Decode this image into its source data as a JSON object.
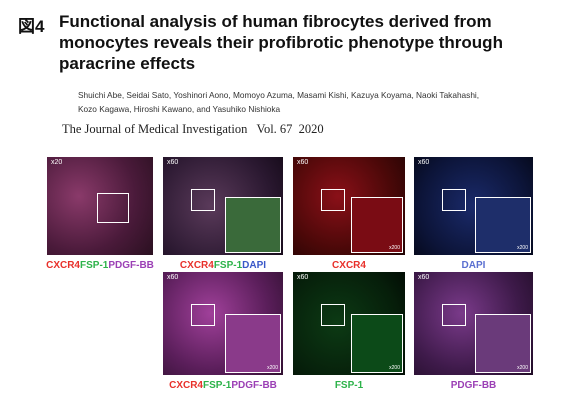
{
  "figure": {
    "label": "図4",
    "title_lines": [
      "Functional analysis of human fibrocytes derived from",
      "monocytes reveals their profibrotic phenotype through",
      "paracrine effects"
    ]
  },
  "authors": [
    "Shuichi Abe, Seidai Sato, Yoshinori Aono, Momoyo Azuma, Masami Kishi, Kazuya Koyama, Naoki Takahashi,",
    "Kozo Kagawa, Hiroshi Kawano, and Yasuhiko Nishioka"
  ],
  "journal": {
    "name": "The Journal of Medical Investigation",
    "volume": "Vol. 67",
    "year": "2020"
  },
  "panels": [
    {
      "magnification": "x20",
      "caption": [
        {
          "text": "CXCR4",
          "color": "#e8302a"
        },
        {
          "text": "FSP-1",
          "color": "#2db34a"
        },
        {
          "text": "PDGF-BB",
          "color": "#9b3fb5"
        }
      ]
    },
    {
      "magnification": "x60",
      "caption": [
        {
          "text": "CXCR4",
          "color": "#e8302a"
        },
        {
          "text": "FSP-1",
          "color": "#2db34a"
        },
        {
          "text": "DAPI",
          "color": "#3a58c8"
        }
      ]
    },
    {
      "magnification": "x60",
      "inset_magnification": "x200",
      "caption": [
        {
          "text": "CXCR4",
          "color": "#e8302a"
        }
      ]
    },
    {
      "magnification": "x60",
      "inset_magnification": "x200",
      "caption": [
        {
          "text": "DAPI",
          "color": "#5a6fd0"
        }
      ]
    },
    {
      "magnification": "x60",
      "inset_magnification": "x200",
      "caption": [
        {
          "text": "CXCR4",
          "color": "#e8302a"
        },
        {
          "text": "FSP-1",
          "color": "#2db34a"
        },
        {
          "text": "PDGF-BB",
          "color": "#9b3fb5"
        }
      ]
    },
    {
      "magnification": "x60",
      "inset_magnification": "x200",
      "caption": [
        {
          "text": "FSP-1",
          "color": "#2db34a"
        }
      ]
    },
    {
      "magnification": "x60",
      "inset_magnification": "x200",
      "caption": [
        {
          "text": "PDGF-BB",
          "color": "#9b3fb5"
        }
      ]
    }
  ]
}
